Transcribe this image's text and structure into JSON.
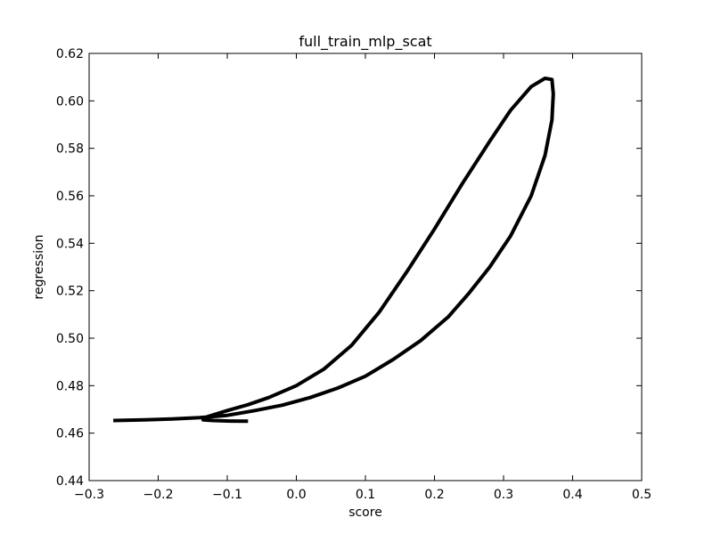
{
  "chart_data": {
    "type": "line",
    "title": "full_train_mlp_scat",
    "xlabel": "score",
    "ylabel": "regression",
    "xlim": [
      -0.3,
      0.5
    ],
    "ylim": [
      0.44,
      0.62
    ],
    "x_ticks": [
      -0.3,
      -0.2,
      -0.1,
      0.0,
      0.1,
      0.2,
      0.3,
      0.4,
      0.5
    ],
    "x_tick_labels": [
      "−0.3",
      "−0.2",
      "−0.1",
      "0.0",
      "0.1",
      "0.2",
      "0.3",
      "0.4",
      "0.5"
    ],
    "y_ticks": [
      0.44,
      0.46,
      0.48,
      0.5,
      0.52,
      0.54,
      0.56,
      0.58,
      0.6,
      0.62
    ],
    "y_tick_labels": [
      "0.44",
      "0.46",
      "0.48",
      "0.50",
      "0.52",
      "0.54",
      "0.56",
      "0.58",
      "0.60",
      "0.62"
    ],
    "grid": false,
    "legend": false,
    "line_color": "#000000",
    "series": [
      {
        "x": [
          -0.07,
          -0.095,
          -0.12,
          -0.135,
          -0.13,
          -0.1,
          -0.07,
          -0.04,
          0.0,
          0.04,
          0.08,
          0.12,
          0.16,
          0.2,
          0.24,
          0.28,
          0.31,
          0.34,
          0.36,
          0.37,
          0.372,
          0.37,
          0.36,
          0.34,
          0.31,
          0.28,
          0.25,
          0.22,
          0.18,
          0.14,
          0.1,
          0.06,
          0.02,
          -0.02,
          -0.06,
          -0.1,
          -0.14,
          -0.18,
          -0.22,
          -0.265
        ],
        "y": [
          0.465,
          0.4651,
          0.4653,
          0.4656,
          0.4668,
          0.4695,
          0.472,
          0.475,
          0.48,
          0.487,
          0.497,
          0.511,
          0.528,
          0.546,
          0.565,
          0.583,
          0.596,
          0.606,
          0.6095,
          0.609,
          0.603,
          0.592,
          0.577,
          0.56,
          0.543,
          0.53,
          0.519,
          0.509,
          0.499,
          0.491,
          0.484,
          0.479,
          0.475,
          0.4718,
          0.4695,
          0.4675,
          0.4665,
          0.466,
          0.4656,
          0.4653
        ]
      }
    ]
  }
}
